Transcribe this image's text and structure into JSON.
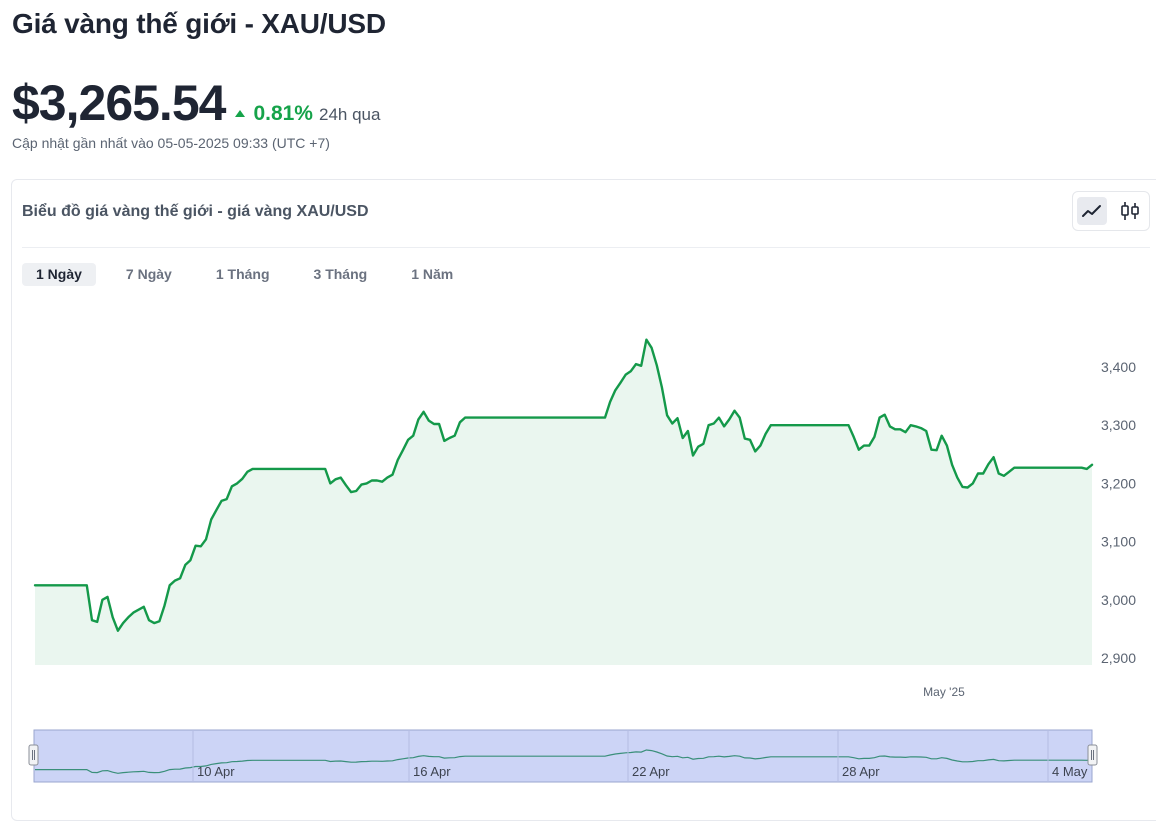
{
  "header": {
    "title": "Giá vàng thế giới - XAU/USD"
  },
  "price": {
    "value": "$3,265.54",
    "change_pct": "0.81%",
    "period": "24h qua",
    "direction": "up",
    "updated": "Cập nhật gần nhất vào 05-05-2025 09:33 (UTC +7)"
  },
  "card": {
    "title": "Biểu đồ giá vàng thế giới - giá vàng XAU/USD",
    "chart_type_toggle": [
      {
        "icon": "line-chart-icon",
        "active": true
      },
      {
        "icon": "candlestick-icon",
        "active": false
      }
    ],
    "range_tabs": [
      {
        "label": "1 Ngày",
        "active": true
      },
      {
        "label": "7 Ngày",
        "active": false
      },
      {
        "label": "1 Tháng",
        "active": false
      },
      {
        "label": "3 Tháng",
        "active": false
      },
      {
        "label": "1 Năm",
        "active": false
      }
    ]
  },
  "colors": {
    "up": "#16a34a",
    "line": "#14994a",
    "area": "#eaf6ef",
    "navigator_fill": "#ccd4f6",
    "navigator_border": "#9aa6cf"
  },
  "chart_data": {
    "type": "area",
    "y_ticks": [
      "3,400",
      "3,300",
      "3,200",
      "3,100",
      "3,000",
      "2,900"
    ],
    "y_tick_values": [
      3400,
      3300,
      3200,
      3100,
      3000,
      2900
    ],
    "ylim": [
      2888,
      3455
    ],
    "x_label": "May '25",
    "navigator_labels": [
      "10 Apr",
      "16 Apr",
      "22 Apr",
      "28 Apr",
      "4 May"
    ],
    "values": [
      3025,
      3025,
      3025,
      3025,
      3025,
      3025,
      3025,
      3025,
      3025,
      3025,
      3025,
      2965,
      2962,
      3000,
      3005,
      2970,
      2947,
      2960,
      2970,
      2978,
      2983,
      2988,
      2965,
      2960,
      2963,
      2990,
      3025,
      3033,
      3037,
      3060,
      3068,
      3093,
      3092,
      3104,
      3138,
      3154,
      3170,
      3173,
      3195,
      3200,
      3208,
      3220,
      3225,
      3225,
      3225,
      3225,
      3225,
      3225,
      3225,
      3225,
      3225,
      3225,
      3225,
      3225,
      3225,
      3225,
      3225,
      3200,
      3207,
      3210,
      3197,
      3185,
      3187,
      3198,
      3200,
      3205,
      3205,
      3203,
      3210,
      3215,
      3240,
      3257,
      3275,
      3282,
      3310,
      3323,
      3308,
      3302,
      3302,
      3273,
      3278,
      3282,
      3305,
      3313,
      3313,
      3313,
      3313,
      3313,
      3313,
      3313,
      3313,
      3313,
      3313,
      3313,
      3313,
      3313,
      3313,
      3313,
      3313,
      3313,
      3313,
      3313,
      3313,
      3313,
      3313,
      3313,
      3313,
      3313,
      3313,
      3313,
      3313,
      3340,
      3360,
      3373,
      3387,
      3393,
      3405,
      3402,
      3447,
      3433,
      3403,
      3365,
      3317,
      3303,
      3312,
      3278,
      3290,
      3248,
      3263,
      3268,
      3300,
      3303,
      3313,
      3298,
      3310,
      3325,
      3313,
      3277,
      3275,
      3255,
      3265,
      3285,
      3300,
      3300,
      3300,
      3300,
      3300,
      3300,
      3300,
      3300,
      3300,
      3300,
      3300,
      3300,
      3300,
      3300,
      3300,
      3300,
      3280,
      3258,
      3265,
      3265,
      3280,
      3313,
      3318,
      3298,
      3293,
      3293,
      3288,
      3300,
      3298,
      3295,
      3290,
      3258,
      3257,
      3282,
      3265,
      3232,
      3210,
      3194,
      3193,
      3200,
      3217,
      3217,
      3233,
      3245,
      3217,
      3213,
      3220,
      3227,
      3227,
      3227,
      3227,
      3227,
      3227,
      3227,
      3227,
      3227,
      3227,
      3227,
      3227,
      3227,
      3227,
      3225,
      3232
    ]
  }
}
